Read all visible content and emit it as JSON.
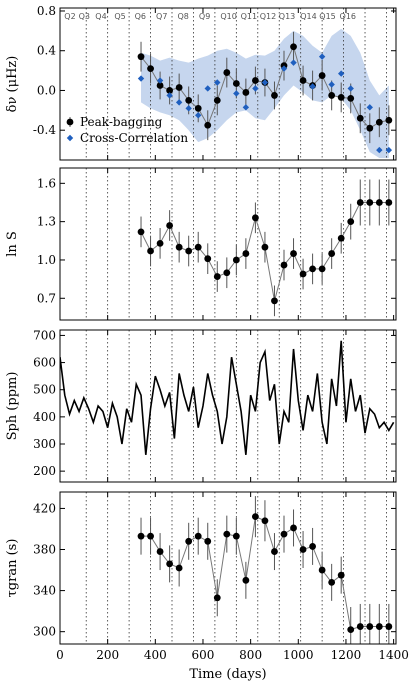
{
  "chart_data": [
    {
      "type": "scatter",
      "ylabel": "δν (μHz)",
      "ylim": [
        -0.7,
        0.83
      ],
      "yticks": [
        "-0.4",
        "0.0",
        "0.4",
        "0.8"
      ],
      "ytick_values": [
        -0.4,
        0.0,
        0.4,
        0.8
      ],
      "quarter_labels": [
        "Q2",
        "Q3",
        "Q4",
        "Q5",
        "Q6",
        "Q7",
        "Q8",
        "Q9",
        "Q10",
        "Q11",
        "Q12",
        "Q13",
        "Q14",
        "Q15",
        "Q16"
      ],
      "quarter_label_x": [
        60,
        120,
        190,
        270,
        355,
        445,
        535,
        625,
        715,
        800,
        880,
        960,
        1050,
        1130,
        1215
      ],
      "legend": [
        {
          "name": "Peak-bagging",
          "marker": "circle",
          "color": "#000000"
        },
        {
          "name": "Cross-Correlation",
          "marker": "diamond",
          "color": "#1f5fbf"
        }
      ],
      "band": {
        "x": [
          340,
          380,
          420,
          460,
          500,
          540,
          580,
          620,
          660,
          700,
          740,
          780,
          820,
          860,
          900,
          940,
          980,
          1020,
          1060,
          1100,
          1140,
          1180,
          1220,
          1260,
          1300,
          1340,
          1380
        ],
        "upper": [
          0.38,
          0.35,
          0.3,
          0.33,
          0.3,
          0.28,
          0.32,
          0.35,
          0.4,
          0.42,
          0.38,
          0.32,
          0.36,
          0.35,
          0.4,
          0.52,
          0.6,
          0.55,
          0.45,
          0.38,
          0.55,
          0.62,
          0.55,
          0.38,
          0.1,
          -0.05,
          0.05
        ],
        "lower": [
          -0.12,
          -0.18,
          -0.22,
          -0.25,
          -0.3,
          -0.4,
          -0.52,
          -0.48,
          -0.4,
          -0.3,
          -0.22,
          -0.2,
          -0.28,
          -0.3,
          -0.18,
          -0.05,
          0.05,
          -0.02,
          -0.1,
          -0.12,
          -0.05,
          -0.08,
          -0.2,
          -0.4,
          -0.62,
          -0.68,
          -0.68
        ]
      },
      "series": [
        {
          "name": "Peak-bagging",
          "x": [
            340,
            380,
            420,
            460,
            500,
            540,
            580,
            620,
            660,
            700,
            740,
            780,
            820,
            860,
            900,
            940,
            980,
            1020,
            1060,
            1100,
            1140,
            1180,
            1220,
            1260,
            1300,
            1340,
            1380
          ],
          "y": [
            0.34,
            0.22,
            0.05,
            0.0,
            0.03,
            -0.1,
            -0.18,
            -0.35,
            -0.1,
            0.18,
            0.07,
            -0.02,
            0.1,
            0.08,
            -0.05,
            0.25,
            0.44,
            0.1,
            0.05,
            0.15,
            -0.05,
            -0.07,
            -0.08,
            -0.28,
            -0.38,
            -0.32,
            -0.3
          ],
          "err": [
            0.15,
            0.15,
            0.14,
            0.14,
            0.14,
            0.14,
            0.14,
            0.15,
            0.15,
            0.15,
            0.15,
            0.14,
            0.14,
            0.14,
            0.14,
            0.15,
            0.15,
            0.15,
            0.15,
            0.15,
            0.15,
            0.15,
            0.15,
            0.15,
            0.15,
            0.15,
            0.15
          ]
        },
        {
          "name": "Cross-Correlation",
          "x": [
            340,
            420,
            460,
            500,
            540,
            580,
            620,
            660,
            740,
            780,
            820,
            860,
            940,
            980,
            1060,
            1100,
            1140,
            1180,
            1220,
            1300,
            1340,
            1380
          ],
          "y": [
            0.12,
            0.1,
            -0.05,
            -0.12,
            -0.18,
            -0.25,
            0.02,
            0.08,
            -0.03,
            -0.17,
            0.02,
            0.08,
            0.22,
            0.28,
            0.04,
            0.34,
            0.06,
            0.17,
            0.02,
            -0.17,
            -0.6,
            -0.6
          ]
        }
      ]
    },
    {
      "type": "line",
      "ylabel": "ln S",
      "ylim": [
        0.53,
        1.72
      ],
      "yticks": [
        "0.7",
        "1.0",
        "1.3",
        "1.6"
      ],
      "ytick_values": [
        0.7,
        1.0,
        1.3,
        1.6
      ],
      "series": [
        {
          "name": "",
          "x": [
            340,
            380,
            420,
            460,
            500,
            540,
            580,
            620,
            660,
            700,
            740,
            780,
            820,
            860,
            900,
            940,
            980,
            1020,
            1060,
            1100,
            1140,
            1180,
            1220,
            1260,
            1300,
            1340,
            1380
          ],
          "y": [
            1.22,
            1.07,
            1.13,
            1.27,
            1.1,
            1.07,
            1.1,
            1.01,
            0.87,
            0.9,
            1.0,
            1.05,
            1.33,
            1.1,
            0.68,
            0.96,
            1.05,
            0.89,
            0.93,
            0.93,
            1.05,
            1.17,
            1.3,
            1.45,
            1.45,
            1.45,
            1.45
          ],
          "err": [
            0.12,
            0.12,
            0.12,
            0.12,
            0.12,
            0.12,
            0.12,
            0.12,
            0.12,
            0.12,
            0.12,
            0.12,
            0.12,
            0.12,
            0.12,
            0.12,
            0.12,
            0.12,
            0.12,
            0.12,
            0.12,
            0.12,
            0.14,
            0.18,
            0.18,
            0.18,
            0.18
          ]
        }
      ]
    },
    {
      "type": "line",
      "ylabel": "Sph (ppm)",
      "ylim": [
        160,
        720
      ],
      "yticks": [
        "200",
        "300",
        "400",
        "500",
        "600",
        "700"
      ],
      "ytick_values": [
        200,
        300,
        400,
        500,
        600,
        700
      ],
      "series": [
        {
          "name": "",
          "x": [
            0,
            20,
            40,
            60,
            80,
            100,
            120,
            140,
            160,
            180,
            200,
            220,
            240,
            260,
            280,
            300,
            320,
            340,
            360,
            380,
            400,
            420,
            440,
            460,
            480,
            500,
            520,
            540,
            560,
            580,
            600,
            620,
            640,
            660,
            680,
            700,
            720,
            740,
            760,
            780,
            800,
            820,
            840,
            860,
            880,
            900,
            920,
            940,
            960,
            980,
            1000,
            1020,
            1040,
            1060,
            1080,
            1100,
            1120,
            1140,
            1160,
            1180,
            1200,
            1220,
            1240,
            1260,
            1280,
            1300,
            1320,
            1340,
            1360,
            1380,
            1400
          ],
          "y": [
            620,
            480,
            410,
            460,
            420,
            470,
            430,
            380,
            440,
            420,
            360,
            450,
            400,
            300,
            430,
            380,
            520,
            480,
            260,
            430,
            550,
            500,
            440,
            490,
            320,
            560,
            480,
            420,
            510,
            360,
            440,
            560,
            480,
            420,
            300,
            400,
            620,
            520,
            420,
            260,
            480,
            420,
            600,
            640,
            460,
            520,
            300,
            420,
            380,
            650,
            460,
            350,
            480,
            420,
            560,
            380,
            300,
            540,
            440,
            680,
            380,
            540,
            420,
            480,
            340,
            430,
            410,
            360,
            380,
            350,
            380
          ]
        }
      ]
    },
    {
      "type": "line",
      "ylabel": "τgran (s)",
      "xlabel": "Time (days)",
      "ylim": [
        288,
        436
      ],
      "xlim": [
        0,
        1410
      ],
      "yticks": [
        "300",
        "340",
        "380",
        "420"
      ],
      "ytick_values": [
        300,
        340,
        380,
        420
      ],
      "xticks": [
        "0",
        "200",
        "400",
        "600",
        "800",
        "1000",
        "1200",
        "1400"
      ],
      "xtick_values": [
        0,
        200,
        400,
        600,
        800,
        1000,
        1200,
        1400
      ],
      "series": [
        {
          "name": "",
          "x": [
            340,
            380,
            420,
            460,
            500,
            540,
            580,
            620,
            660,
            700,
            740,
            780,
            820,
            860,
            900,
            940,
            980,
            1020,
            1060,
            1100,
            1140,
            1180,
            1220,
            1260,
            1300,
            1340,
            1380
          ],
          "y": [
            393,
            393,
            378,
            366,
            362,
            388,
            393,
            388,
            333,
            395,
            393,
            350,
            412,
            408,
            378,
            395,
            401,
            380,
            383,
            360,
            348,
            355,
            302,
            305,
            305,
            305,
            305
          ],
          "err": [
            18,
            18,
            18,
            18,
            18,
            18,
            18,
            18,
            18,
            18,
            18,
            18,
            20,
            20,
            18,
            18,
            18,
            18,
            18,
            18,
            18,
            18,
            22,
            22,
            22,
            22,
            22
          ]
        }
      ]
    }
  ]
}
